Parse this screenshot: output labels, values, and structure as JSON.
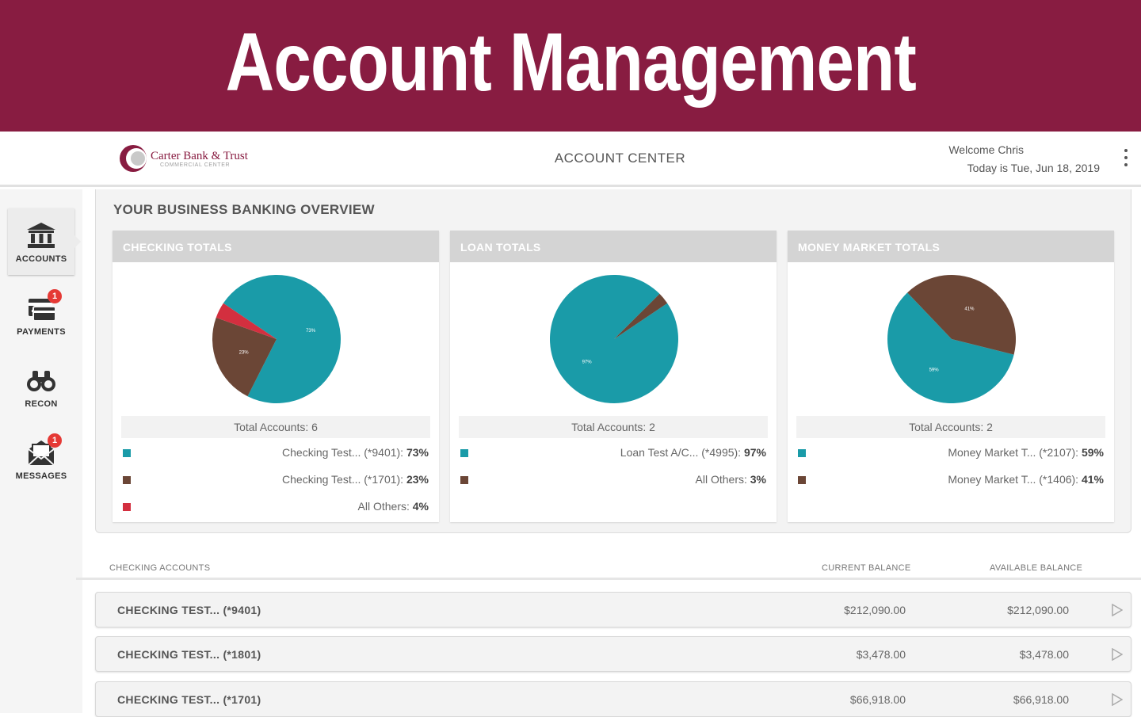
{
  "banner": {
    "title": "Account Management"
  },
  "header": {
    "logo_name": "Carter Bank & Trust",
    "logo_sub": "COMMERCIAL CENTER",
    "center_title": "ACCOUNT CENTER",
    "welcome": "Welcome Chris",
    "date": "Today is Tue, Jun 18, 2019"
  },
  "sidebar": {
    "items": [
      {
        "label": "ACCOUNTS",
        "icon": "bank-icon",
        "badge": "",
        "active": true
      },
      {
        "label": "PAYMENTS",
        "icon": "payments-icon",
        "badge": "1",
        "active": false
      },
      {
        "label": "RECON",
        "icon": "binoculars-icon",
        "badge": "",
        "active": false
      },
      {
        "label": "MESSAGES",
        "icon": "envelope-icon",
        "badge": "1",
        "active": false
      }
    ]
  },
  "overview": {
    "title": "YOUR BUSINESS BANKING OVERVIEW",
    "cards": [
      {
        "title": "CHECKING TOTALS",
        "total": "Total Accounts: 6",
        "slices": [
          {
            "value": 73,
            "label": "73%",
            "color": "#1a9ba8"
          },
          {
            "value": 23,
            "label": "23%",
            "color": "#6b4636"
          },
          {
            "value": 4,
            "label": "",
            "color": "#d32f3f"
          }
        ],
        "legend": [
          {
            "name": "Checking Test...  (*9401):",
            "pct": "73%",
            "color": "#1a9ba8"
          },
          {
            "name": "Checking Test...  (*1701):",
            "pct": "23%",
            "color": "#6b4636"
          },
          {
            "name": "All Others:",
            "pct": "4%",
            "color": "#d32f3f"
          }
        ]
      },
      {
        "title": "LOAN TOTALS",
        "total": "Total Accounts: 2",
        "slices": [
          {
            "value": 97,
            "label": "97%",
            "color": "#1a9ba8"
          },
          {
            "value": 3,
            "label": "",
            "color": "#6b4636"
          }
        ],
        "legend": [
          {
            "name": "Loan Test A/C...  (*4995):",
            "pct": "97%",
            "color": "#1a9ba8"
          },
          {
            "name": "All Others:",
            "pct": "3%",
            "color": "#6b4636"
          }
        ]
      },
      {
        "title": "MONEY MARKET TOTALS",
        "total": "Total Accounts: 2",
        "slices": [
          {
            "value": 59,
            "label": "59%",
            "color": "#1a9ba8"
          },
          {
            "value": 41,
            "label": "41%",
            "color": "#6b4636"
          }
        ],
        "legend": [
          {
            "name": "Money Market T...  (*2107):",
            "pct": "59%",
            "color": "#1a9ba8"
          },
          {
            "name": "Money Market T...  (*1406):",
            "pct": "41%",
            "color": "#6b4636"
          }
        ]
      }
    ]
  },
  "accounts": {
    "header": {
      "name": "CHECKING ACCOUNTS",
      "current": "CURRENT BALANCE",
      "available": "AVAILABLE BALANCE"
    },
    "rows": [
      {
        "name": "CHECKING TEST...  (*9401)",
        "current": "$212,090.00",
        "available": "$212,090.00"
      },
      {
        "name": "CHECKING TEST...  (*1801)",
        "current": "$3,478.00",
        "available": "$3,478.00"
      },
      {
        "name": "CHECKING TEST...  (*1701)",
        "current": "$66,918.00",
        "available": "$66,918.00"
      }
    ]
  }
}
